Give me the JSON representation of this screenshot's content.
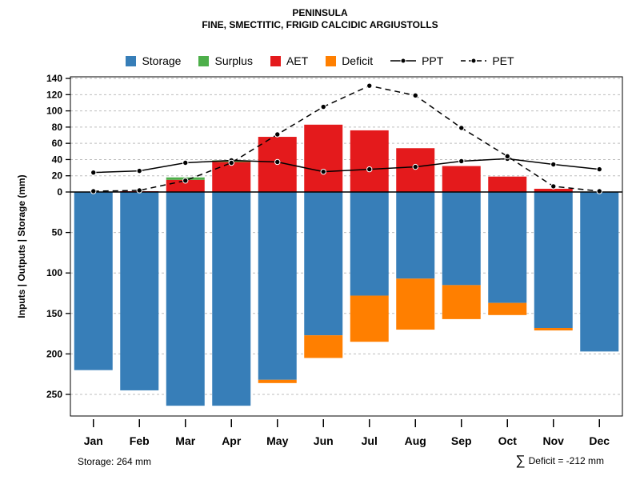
{
  "title": "PENINSULA",
  "subtitle": "FINE, SMECTITIC, FRIGID CALCIDIC ARGIUSTOLLS",
  "legend": {
    "storage": "Storage",
    "surplus": "Surplus",
    "aet": "AET",
    "deficit": "Deficit",
    "ppt": "PPT",
    "pet": "PET"
  },
  "colors": {
    "storage": "#377EB8",
    "surplus": "#4DAF4A",
    "aet": "#E41A1C",
    "deficit": "#FF7F00",
    "line": "#000000",
    "grid": "#BDBDBD"
  },
  "footer": {
    "storage_note": "Storage: 264 mm",
    "sigma": "∑",
    "deficit_note": "Deficit = -212 mm"
  },
  "chart_data": {
    "type": "bar",
    "title": "PENINSULA",
    "subtitle": "FINE, SMECTITIC, FRIGID CALCIDIC ARGIUSTOLLS",
    "ylabel": "Inputs | Outputs | Storage  (mm)",
    "legend_position": "top",
    "grid": true,
    "categories": [
      "Jan",
      "Feb",
      "Mar",
      "Apr",
      "May",
      "Jun",
      "Jul",
      "Aug",
      "Sep",
      "Oct",
      "Nov",
      "Dec"
    ],
    "series": [
      {
        "name": "AET",
        "type": "bar",
        "direction": "up",
        "color_key": "aet",
        "values": [
          0,
          1,
          15,
          37,
          68,
          83,
          76,
          54,
          32,
          19,
          4,
          0
        ]
      },
      {
        "name": "Surplus",
        "type": "bar",
        "direction": "up",
        "stack_on": "AET",
        "color_key": "surplus",
        "values": [
          0,
          0,
          3,
          2,
          0,
          0,
          0,
          0,
          0,
          0,
          0,
          0
        ]
      },
      {
        "name": "Storage",
        "type": "bar",
        "direction": "down",
        "color_key": "storage",
        "values": [
          220,
          245,
          264,
          264,
          232,
          177,
          128,
          107,
          115,
          137,
          168,
          197
        ]
      },
      {
        "name": "Deficit",
        "type": "bar",
        "direction": "down",
        "stack_on": "Storage",
        "color_key": "deficit",
        "values": [
          0,
          0,
          0,
          0,
          4,
          28,
          57,
          63,
          42,
          15,
          3,
          0
        ]
      },
      {
        "name": "PPT",
        "type": "line",
        "style": "solid",
        "values": [
          24,
          26,
          36,
          39,
          37,
          25,
          28,
          31,
          38,
          41,
          34,
          28
        ]
      },
      {
        "name": "PET",
        "type": "line",
        "style": "dashed",
        "values": [
          1,
          2,
          14,
          36,
          71,
          105,
          131,
          119,
          79,
          44,
          7,
          1
        ]
      }
    ],
    "y_ticks_up": [
      0,
      20,
      40,
      60,
      80,
      100,
      120,
      140
    ],
    "y_ticks_down": [
      50,
      100,
      150,
      200,
      250
    ],
    "ylim_up": 140,
    "ylim_down": 268,
    "storage_capacity_mm": 264,
    "deficit_sum_mm": -212
  }
}
